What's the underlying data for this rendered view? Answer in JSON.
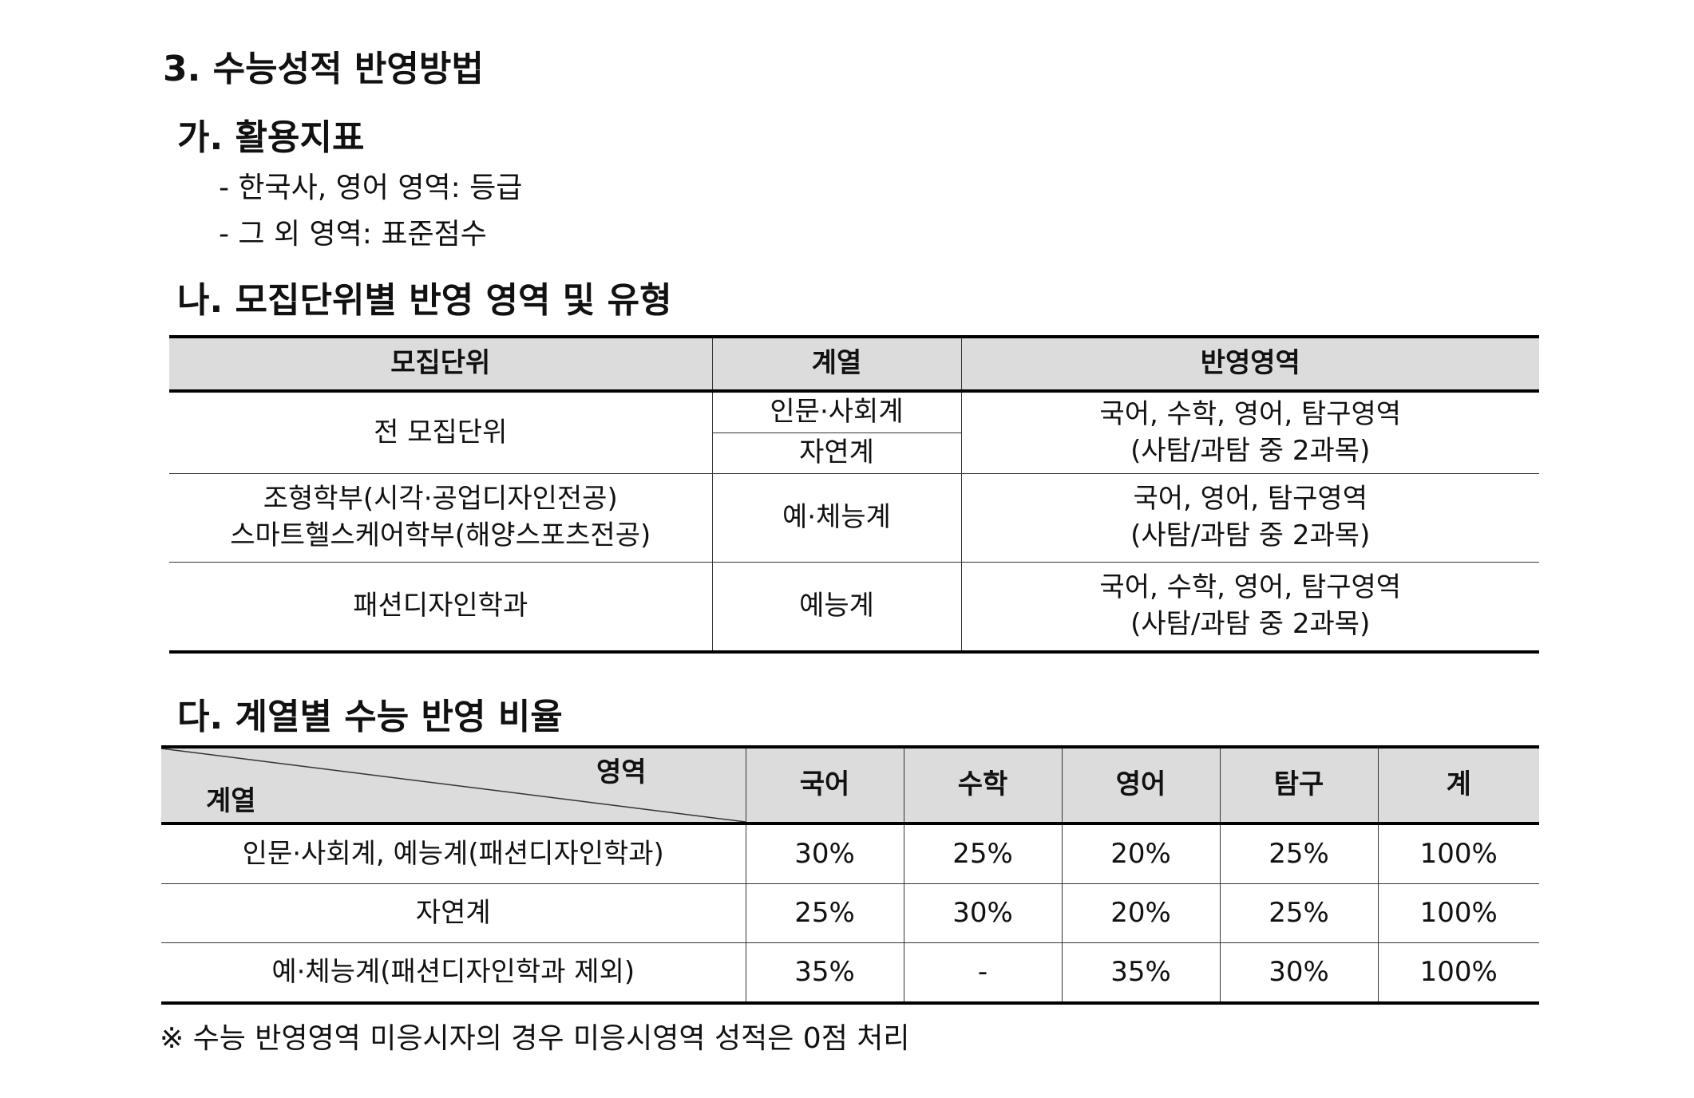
{
  "section_title": "3. 수능성적 반영방법",
  "sub_a": {
    "title": "가. 활용지표",
    "bullets": [
      "- 한국사, 영어 영역: 등급",
      "- 그 외 영역: 표준점수"
    ]
  },
  "sub_b": {
    "title": "나. 모집단위별 반영 영역 및 유형",
    "headers": [
      "모집단위",
      "계열",
      "반영영역"
    ],
    "rows": [
      {
        "unit": "전 모집단위",
        "tracks": [
          "인문·사회계",
          "자연계"
        ],
        "area_line1": "국어, 수학, 영어, 탐구영역",
        "area_line2": "(사탐/과탐 중 2과목)"
      },
      {
        "unit_line1": "조형학부(시각·공업디자인전공)",
        "unit_line2": "스마트헬스케어학부(해양스포츠전공)",
        "track": "예·체능계",
        "area_line1": "국어, 영어, 탐구영역",
        "area_line2": "(사탐/과탐 중 2과목)"
      },
      {
        "unit": "패션디자인학과",
        "track": "예능계",
        "area_line1": "국어, 수학, 영어, 탐구영역",
        "area_line2": "(사탐/과탐 중 2과목)"
      }
    ]
  },
  "sub_c": {
    "title": "다. 계열별 수능 반영 비율",
    "corner_top": "영역",
    "corner_bottom": "계열",
    "headers": [
      "국어",
      "수학",
      "영어",
      "탐구",
      "계"
    ],
    "rows": [
      {
        "track": "인문·사회계, 예능계(패션디자인학과)",
        "values": [
          "30%",
          "25%",
          "20%",
          "25%",
          "100%"
        ]
      },
      {
        "track": "자연계",
        "values": [
          "25%",
          "30%",
          "20%",
          "25%",
          "100%"
        ]
      },
      {
        "track": "예·체능계(패션디자인학과 제외)",
        "values": [
          "35%",
          "-",
          "35%",
          "30%",
          "100%"
        ]
      }
    ]
  },
  "note": "※ 수능 반영영역 미응시자의 경우 미응시영역 성적은 0점 처리"
}
